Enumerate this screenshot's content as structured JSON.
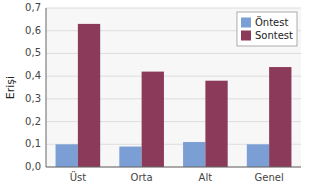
{
  "chart_data": {
    "type": "bar",
    "categories": [
      "Üst",
      "Orta",
      "Alt",
      "Genel"
    ],
    "series": [
      {
        "name": "Öntest",
        "color": "#7B9FD4",
        "values": [
          0.1,
          0.09,
          0.11,
          0.1
        ]
      },
      {
        "name": "Sontest",
        "color": "#8B3A5A",
        "values": [
          0.63,
          0.42,
          0.38,
          0.44
        ]
      }
    ],
    "ylabel": "Erişi",
    "ylim": [
      0,
      0.7
    ],
    "yticks": [
      {
        "value": 0,
        "label": "0,0"
      },
      {
        "value": 0.1,
        "label": "0,1"
      },
      {
        "value": 0.2,
        "label": "0,2"
      },
      {
        "value": 0.3,
        "label": "0,3"
      },
      {
        "value": 0.4,
        "label": "0,4"
      },
      {
        "value": 0.5,
        "label": "0,5"
      },
      {
        "value": 0.6,
        "label": "0,6"
      },
      {
        "value": 0.7,
        "label": "0,7"
      }
    ],
    "grid": true,
    "legend": "upper right"
  }
}
